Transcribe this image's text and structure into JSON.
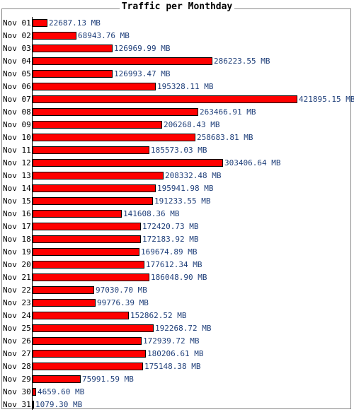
{
  "chart_data": {
    "type": "bar",
    "orientation": "horizontal",
    "title": "Traffic per Monthday",
    "unit": "MB",
    "bar_color": "#ff0000",
    "bar_border_color": "#000000",
    "categories": [
      "Nov 01",
      "Nov 02",
      "Nov 03",
      "Nov 04",
      "Nov 05",
      "Nov 06",
      "Nov 07",
      "Nov 08",
      "Nov 09",
      "Nov 10",
      "Nov 11",
      "Nov 12",
      "Nov 13",
      "Nov 14",
      "Nov 15",
      "Nov 16",
      "Nov 17",
      "Nov 18",
      "Nov 19",
      "Nov 20",
      "Nov 21",
      "Nov 22",
      "Nov 23",
      "Nov 24",
      "Nov 25",
      "Nov 26",
      "Nov 27",
      "Nov 28",
      "Nov 29",
      "Nov 30",
      "Nov 31"
    ],
    "values": [
      22687.13,
      68943.76,
      126969.99,
      286223.55,
      126993.47,
      195328.11,
      421895.15,
      263466.91,
      206268.43,
      258683.81,
      185573.03,
      303406.64,
      208332.48,
      195941.98,
      191233.55,
      141608.36,
      172420.73,
      172183.92,
      169674.89,
      177612.34,
      186048.9,
      97030.7,
      99776.39,
      152862.52,
      192268.72,
      172939.72,
      180206.61,
      175148.38,
      75991.59,
      4659.6,
      1079.3
    ],
    "labels": [
      "22687.13 MB",
      "68943.76 MB",
      "126969.99 MB",
      "286223.55 MB",
      "126993.47 MB",
      "195328.11 MB",
      "421895.15 MB",
      "263466.91 MB",
      "206268.43 MB",
      "258683.81 MB",
      "185573.03 MB",
      "303406.64 MB",
      "208332.48 MB",
      "195941.98 MB",
      "191233.55 MB",
      "141608.36 MB",
      "172420.73 MB",
      "172183.92 MB",
      "169674.89 MB",
      "177612.34 MB",
      "186048.90 MB",
      "97030.70 MB",
      "99776.39 MB",
      "152862.52 MB",
      "192268.72 MB",
      "172939.72 MB",
      "180206.61 MB",
      "175148.38 MB",
      "75991.59 MB",
      "4659.60 MB",
      "1079.30 MB"
    ]
  }
}
